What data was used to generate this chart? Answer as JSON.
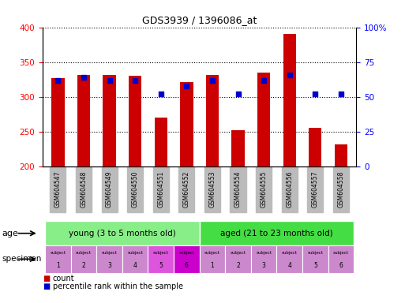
{
  "title": "GDS3939 / 1396086_at",
  "categories": [
    "GSM604547",
    "GSM604548",
    "GSM604549",
    "GSM604550",
    "GSM604551",
    "GSM604552",
    "GSM604553",
    "GSM604554",
    "GSM604555",
    "GSM604556",
    "GSM604557",
    "GSM604558"
  ],
  "count_values": [
    327,
    332,
    332,
    330,
    270,
    321,
    332,
    252,
    335,
    390,
    256,
    232
  ],
  "percentile_values": [
    62,
    64,
    62,
    62,
    52,
    58,
    62,
    52,
    62,
    66,
    52,
    52
  ],
  "ylim_left": [
    200,
    400
  ],
  "ylim_right": [
    0,
    100
  ],
  "yticks_left": [
    200,
    250,
    300,
    350,
    400
  ],
  "yticks_right": [
    0,
    25,
    50,
    75,
    100
  ],
  "ytick_labels_right": [
    "0",
    "25",
    "50",
    "75",
    "100%"
  ],
  "bar_color": "#cc0000",
  "dot_color": "#0000cc",
  "bar_width": 0.5,
  "age_group_young_label": "young (3 to 5 months old)",
  "age_group_aged_label": "aged (21 to 23 months old)",
  "age_group_young_color": "#88ee88",
  "age_group_aged_color": "#44dd44",
  "specimen_colors_young": [
    "#cc88cc",
    "#cc88cc",
    "#cc88cc",
    "#cc88cc",
    "#dd55dd",
    "#cc00cc"
  ],
  "specimen_colors_aged": [
    "#cc88cc",
    "#cc88cc",
    "#cc88cc",
    "#cc88cc",
    "#cc88cc",
    "#cc88cc"
  ],
  "x_tick_bg": "#bbbbbb",
  "legend_count_color": "#cc0000",
  "legend_dot_color": "#0000cc",
  "age_label": "age",
  "specimen_label": "specimen"
}
